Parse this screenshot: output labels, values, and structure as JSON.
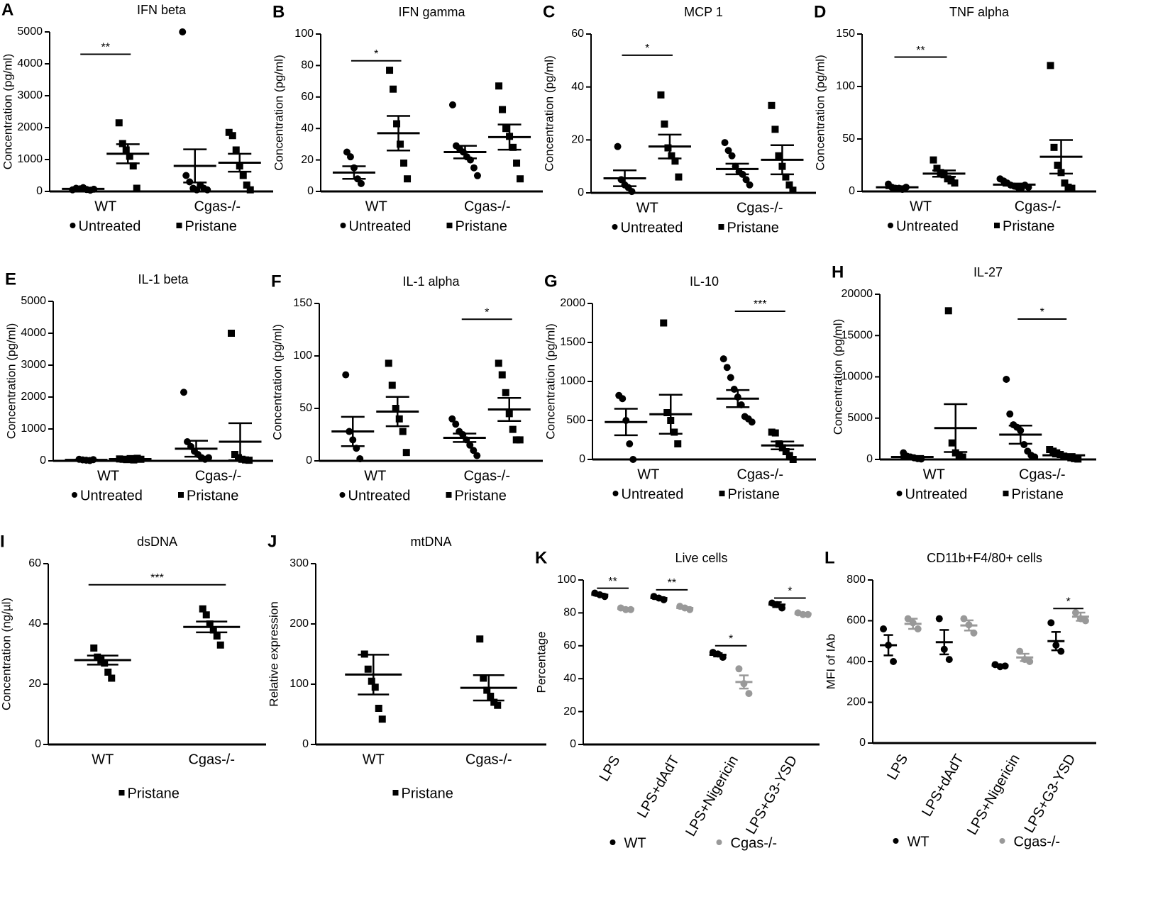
{
  "chart_data": [
    {
      "type": "dotplot",
      "panel": "A",
      "title": "IFN beta",
      "ylabel": "Concentration (pg/ml)",
      "categories": [
        "WT",
        "Cgas-/-"
      ],
      "ylim": [
        0,
        5000
      ],
      "yticks": [
        0,
        1000,
        2000,
        3000,
        4000,
        5000
      ],
      "series": [
        {
          "name": "Untreated",
          "marker": "circle",
          "color": "#000000",
          "points": [
            [
              50,
              100,
              80,
              120,
              60,
              40,
              70
            ],
            [
              5000,
              500,
              300,
              100,
              50,
              200,
              100,
              50
            ]
          ],
          "mean": [
            80,
            800
          ],
          "sem": [
            20,
            520
          ]
        },
        {
          "name": "Pristane",
          "marker": "square",
          "color": "#000000",
          "points": [
            [
              2150,
              1500,
              1300,
              1100,
              800,
              100
            ],
            [
              1850,
              1750,
              1300,
              800,
              500,
              200,
              50
            ]
          ],
          "mean": [
            1180,
            900
          ],
          "sem": [
            300,
            280
          ]
        }
      ],
      "significance": [
        {
          "category": "WT",
          "label": "**",
          "y": 4300
        }
      ]
    },
    {
      "type": "dotplot",
      "panel": "B",
      "title": "IFN gamma",
      "ylabel": "Concentration (pg/ml)",
      "categories": [
        "WT",
        "Cgas-/-"
      ],
      "ylim": [
        0,
        100
      ],
      "yticks": [
        0,
        20,
        40,
        60,
        80,
        100
      ],
      "series": [
        {
          "name": "Untreated",
          "marker": "circle",
          "color": "#000000",
          "points": [
            [
              25,
              22,
              15,
              8,
              5
            ],
            [
              55,
              29,
              27,
              25,
              22,
              20,
              15,
              10
            ]
          ],
          "mean": [
            12,
            25
          ],
          "sem": [
            4,
            4
          ]
        },
        {
          "name": "Pristane",
          "marker": "square",
          "color": "#000000",
          "points": [
            [
              77,
              65,
              43,
              30,
              18,
              8
            ],
            [
              67,
              52,
              40,
              35,
              28,
              18,
              8
            ]
          ],
          "mean": [
            37,
            34.5
          ],
          "sem": [
            11,
            8
          ]
        }
      ],
      "significance": [
        {
          "category": "WT",
          "label": "*",
          "y": 83
        }
      ]
    },
    {
      "type": "dotplot",
      "panel": "C",
      "title": "MCP 1",
      "ylabel": "Concentration (pg/ml)",
      "categories": [
        "WT",
        "Cgas-/-"
      ],
      "ylim": [
        0,
        60
      ],
      "yticks": [
        0,
        20,
        40,
        60
      ],
      "series": [
        {
          "name": "Untreated",
          "marker": "circle",
          "color": "#000000",
          "points": [
            [
              17.5,
              5,
              3,
              2,
              0.5
            ],
            [
              19,
              16,
              14,
              10,
              8,
              7,
              5,
              3
            ]
          ],
          "mean": [
            5.5,
            9
          ],
          "sem": [
            3,
            2
          ]
        },
        {
          "name": "Pristane",
          "marker": "square",
          "color": "#000000",
          "points": [
            [
              37,
              26,
              17,
              14,
              12,
              6
            ],
            [
              33,
              24,
              14,
              10,
              6,
              3,
              1
            ]
          ],
          "mean": [
            17.5,
            12.5
          ],
          "sem": [
            4.5,
            5.5
          ]
        }
      ],
      "significance": [
        {
          "category": "WT",
          "label": "*",
          "y": 52
        }
      ]
    },
    {
      "type": "dotplot",
      "panel": "D",
      "title": "TNF alpha",
      "ylabel": "Concentration (pg/ml)",
      "categories": [
        "WT",
        "Cgas-/-"
      ],
      "ylim": [
        0,
        150
      ],
      "yticks": [
        0,
        50,
        100,
        150
      ],
      "series": [
        {
          "name": "Untreated",
          "marker": "circle",
          "color": "#000000",
          "points": [
            [
              7,
              4,
              3,
              3,
              2,
              4
            ],
            [
              12,
              10,
              8,
              6,
              5,
              4,
              3,
              6,
              4
            ]
          ],
          "mean": [
            4,
            6.5
          ],
          "sem": [
            1,
            1
          ]
        },
        {
          "name": "Pristane",
          "marker": "square",
          "color": "#000000",
          "points": [
            [
              30,
              22,
              18,
              16,
              12,
              10,
              8
            ],
            [
              120,
              42,
              25,
              18,
              8,
              4,
              3
            ]
          ],
          "mean": [
            17,
            33
          ],
          "sem": [
            3,
            16
          ]
        }
      ],
      "significance": [
        {
          "category": "WT",
          "label": "**",
          "y": 128
        }
      ]
    },
    {
      "type": "dotplot",
      "panel": "E",
      "title": "IL-1 beta",
      "ylabel": "Concentration (pg/ml)",
      "categories": [
        "WT",
        "Cgas-/-"
      ],
      "ylim": [
        0,
        5000
      ],
      "yticks": [
        0,
        1000,
        2000,
        3000,
        4000,
        5000
      ],
      "series": [
        {
          "name": "Untreated",
          "marker": "circle",
          "color": "#000000",
          "points": [
            [
              50,
              30,
              20,
              10,
              40
            ],
            [
              2150,
              600,
              450,
              300,
              200,
              100,
              50,
              100
            ]
          ],
          "mean": [
            30,
            380
          ],
          "sem": [
            10,
            250
          ]
        },
        {
          "name": "Pristane",
          "marker": "square",
          "color": "#000000",
          "points": [
            [
              60,
              50,
              40,
              70,
              30,
              80,
              50
            ],
            [
              4000,
              200,
              100,
              50,
              30,
              20
            ]
          ],
          "mean": [
            55,
            600
          ],
          "sem": [
            10,
            580
          ]
        }
      ],
      "significance": []
    },
    {
      "type": "dotplot",
      "panel": "F",
      "title": "IL-1 alpha",
      "ylabel": "Concentration (pg/ml)",
      "categories": [
        "WT",
        "Cgas-/-"
      ],
      "ylim": [
        0,
        150
      ],
      "yticks": [
        0,
        50,
        100,
        150
      ],
      "series": [
        {
          "name": "Untreated",
          "marker": "circle",
          "color": "#000000",
          "points": [
            [
              82,
              28,
              20,
              12,
              2
            ],
            [
              40,
              35,
              28,
              25,
              20,
              15,
              10,
              5
            ]
          ],
          "mean": [
            28,
            22
          ],
          "sem": [
            14,
            4
          ]
        },
        {
          "name": "Pristane",
          "marker": "square",
          "color": "#000000",
          "points": [
            [
              93,
              72,
              50,
              40,
              28,
              8
            ],
            [
              93,
              82,
              65,
              45,
              30,
              20,
              20
            ]
          ],
          "mean": [
            47,
            49
          ],
          "sem": [
            14,
            11
          ]
        }
      ],
      "significance": [
        {
          "category": "Cgas-/-",
          "label": "*",
          "y": 135
        }
      ]
    },
    {
      "type": "dotplot",
      "panel": "G",
      "title": "IL-10",
      "ylabel": "Concentration (pg/ml)",
      "categories": [
        "WT",
        "Cgas-/-"
      ],
      "ylim": [
        0,
        2000
      ],
      "yticks": [
        0,
        500,
        1000,
        1500,
        2000
      ],
      "series": [
        {
          "name": "Untreated",
          "marker": "circle",
          "color": "#000000",
          "points": [
            [
              820,
              780,
              500,
              200,
              0
            ],
            [
              1290,
              1180,
              1050,
              900,
              800,
              700,
              550,
              520,
              480
            ]
          ],
          "mean": [
            480,
            780
          ],
          "sem": [
            170,
            110
          ]
        },
        {
          "name": "Pristane",
          "marker": "square",
          "color": "#000000",
          "points": [
            [
              1750,
              600,
              500,
              350,
              200
            ],
            [
              350,
              340,
              200,
              150,
              100,
              50,
              0
            ]
          ],
          "mean": [
            580,
            180
          ],
          "sem": [
            250,
            50
          ]
        }
      ],
      "significance": [
        {
          "category": "Cgas-/-",
          "label": "***",
          "y": 1900
        }
      ]
    },
    {
      "type": "dotplot",
      "panel": "H",
      "title": "IL-27",
      "ylabel": "Concentration (pg/ml)",
      "categories": [
        "WT",
        "Cgas-/-"
      ],
      "ylim": [
        0,
        20000
      ],
      "yticks": [
        0,
        5000,
        10000,
        15000,
        20000
      ],
      "series": [
        {
          "name": "Untreated",
          "marker": "circle",
          "color": "#000000",
          "points": [
            [
              800,
              400,
              300,
              200,
              100,
              50
            ],
            [
              9700,
              5500,
              4200,
              3900,
              3500,
              1800,
              1000,
              500,
              300
            ]
          ],
          "mean": [
            300,
            3000
          ],
          "sem": [
            120,
            1100
          ]
        },
        {
          "name": "Pristane",
          "marker": "square",
          "color": "#000000",
          "points": [
            [
              18000,
              2000,
              800,
              500,
              300
            ],
            [
              1200,
              1000,
              800,
              600,
              400,
              300,
              200,
              100,
              50
            ]
          ],
          "mean": [
            3800,
            500
          ],
          "sem": [
            2900,
            150
          ]
        }
      ],
      "significance": [
        {
          "category": "Cgas-/-",
          "label": "*",
          "y": 17000
        }
      ]
    },
    {
      "type": "dotplot",
      "panel": "I",
      "title": "dsDNA",
      "ylabel": "Concentration (ng/µl)",
      "categories": [
        "WT",
        "Cgas-/-"
      ],
      "ylim": [
        0,
        60
      ],
      "yticks": [
        0,
        20,
        40,
        60
      ],
      "series": [
        {
          "name": "Pristane",
          "marker": "square",
          "color": "#000000",
          "points": [
            [
              32,
              29,
              28,
              27,
              24,
              22
            ],
            [
              45,
              43,
              40,
              38,
              36,
              33
            ]
          ],
          "mean": [
            28,
            39
          ],
          "sem": [
            1.5,
            1.8
          ]
        }
      ],
      "significance": [
        {
          "label": "***",
          "y": 53
        }
      ]
    },
    {
      "type": "dotplot",
      "panel": "J",
      "title": "mtDNA",
      "ylabel": "Relative expression",
      "categories": [
        "WT",
        "Cgas-/-"
      ],
      "ylim": [
        0,
        300
      ],
      "yticks": [
        0,
        100,
        200,
        300
      ],
      "series": [
        {
          "name": "Pristane",
          "marker": "square",
          "color": "#000000",
          "points": [
            [
              150,
              125,
              105,
              95,
              60,
              42
            ],
            [
              175,
              110,
              90,
              80,
              70,
              65
            ]
          ],
          "mean": [
            116,
            94
          ],
          "sem": [
            33,
            21
          ]
        }
      ],
      "significance": []
    },
    {
      "type": "dotplot",
      "panel": "K",
      "title": "Live cells",
      "ylabel": "Percentage",
      "categories": [
        "LPS",
        "LPS+dAdT",
        "LPS+Nigericin",
        "LPS+G3-YSD"
      ],
      "ylim": [
        0,
        100
      ],
      "yticks": [
        0,
        20,
        40,
        60,
        80,
        100
      ],
      "series": [
        {
          "name": "WT",
          "marker": "circle",
          "color": "#000000",
          "points": [
            [
              92,
              91,
              90
            ],
            [
              90,
              89,
              88
            ],
            [
              56,
              55,
              53
            ],
            [
              86,
              85,
              83
            ]
          ],
          "mean": [
            91,
            89,
            54.5,
            85
          ],
          "sem": [
            0.7,
            0.6,
            1,
            1.5
          ]
        },
        {
          "name": "Cgas-/-",
          "marker": "circle",
          "color": "#999999",
          "points": [
            [
              83,
              82,
              82
            ],
            [
              84,
              83,
              82
            ],
            [
              46,
              37,
              31
            ],
            [
              80,
              79,
              79
            ]
          ],
          "mean": [
            82.5,
            83,
            38,
            79.5
          ],
          "sem": [
            0.5,
            0.5,
            4,
            0.5
          ]
        }
      ],
      "significance": [
        {
          "category": "LPS",
          "label": "**",
          "y": 95
        },
        {
          "category": "LPS+dAdT",
          "label": "**",
          "y": 94
        },
        {
          "category": "LPS+Nigericin",
          "label": "*",
          "y": 60
        },
        {
          "category": "LPS+G3-YSD",
          "label": "*",
          "y": 89
        }
      ]
    },
    {
      "type": "dotplot",
      "panel": "L",
      "title": "CD11b+F4/80+ cells",
      "ylabel": "MFI of IAb",
      "categories": [
        "LPS",
        "LPS+dAdT",
        "LPS+Nigericin",
        "LPS+G3-YSD"
      ],
      "ylim": [
        0,
        800
      ],
      "yticks": [
        0,
        200,
        400,
        600,
        800
      ],
      "series": [
        {
          "name": "WT",
          "marker": "circle",
          "color": "#000000",
          "points": [
            [
              560,
              480,
              400
            ],
            [
              610,
              460,
              410
            ],
            [
              385,
              375,
              378
            ],
            [
              590,
              480,
              450
            ]
          ],
          "mean": [
            480,
            495,
            380,
            500
          ],
          "sem": [
            50,
            60,
            5,
            45
          ]
        },
        {
          "name": "Cgas-/-",
          "marker": "circle",
          "color": "#999999",
          "points": [
            [
              610,
              590,
              560
            ],
            [
              610,
              580,
              540
            ],
            [
              450,
              410,
              400
            ],
            [
              640,
              610,
              600
            ]
          ],
          "mean": [
            585,
            577,
            420,
            620
          ],
          "sem": [
            25,
            25,
            18,
            20
          ]
        }
      ],
      "significance": [
        {
          "category": "LPS+G3-YSD",
          "label": "*",
          "y": 660
        }
      ]
    }
  ]
}
